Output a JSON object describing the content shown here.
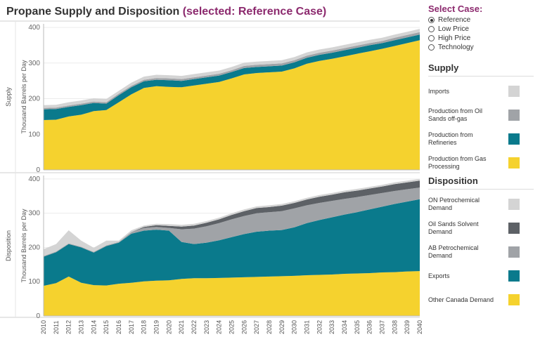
{
  "title": {
    "main": "Propane Supply and Disposition",
    "selected": "(selected: Reference Case)"
  },
  "case_selector": {
    "title": "Select Case:",
    "options": [
      {
        "label": "Reference",
        "selected": true
      },
      {
        "label": "Low Price",
        "selected": false
      },
      {
        "label": "High Price",
        "selected": false
      },
      {
        "label": "Technology",
        "selected": false
      }
    ]
  },
  "legend_supply": {
    "title": "Supply",
    "items": [
      {
        "label": "Imports",
        "color": "#d4d4d4"
      },
      {
        "label": "Production from Oil Sands off-gas",
        "color": "#a0a3a7"
      },
      {
        "label": "Production from Refineries",
        "color": "#0a7a8c"
      },
      {
        "label": "Production from Gas Processing",
        "color": "#f5d22e"
      }
    ]
  },
  "legend_disposition": {
    "title": "Disposition",
    "items": [
      {
        "label": "ON Petrochemical Demand",
        "color": "#d4d4d4"
      },
      {
        "label": "Oil Sands Solvent Demand",
        "color": "#5d6166"
      },
      {
        "label": "AB Petrochemical Demand",
        "color": "#a0a3a7"
      },
      {
        "label": "Exports",
        "color": "#0a7a8c"
      },
      {
        "label": "Other Canada Demand",
        "color": "#f5d22e"
      }
    ]
  },
  "chart_data": [
    {
      "type": "area",
      "panel_label": "Supply",
      "ylabel": "Thousand Barrels per Day",
      "ylim": [
        0,
        410
      ],
      "yticks": [
        0,
        100,
        200,
        300,
        400
      ],
      "stacked": true,
      "x": [
        2010,
        2011,
        2012,
        2013,
        2014,
        2015,
        2016,
        2017,
        2018,
        2019,
        2020,
        2021,
        2022,
        2023,
        2024,
        2025,
        2026,
        2027,
        2028,
        2029,
        2030,
        2031,
        2032,
        2033,
        2034,
        2035,
        2036,
        2037,
        2038,
        2039,
        2040
      ],
      "series": [
        {
          "name": "Production from Gas Processing",
          "color": "#f5d22e",
          "values": [
            140,
            141,
            150,
            155,
            165,
            168,
            190,
            212,
            230,
            235,
            233,
            232,
            237,
            242,
            247,
            257,
            268,
            272,
            274,
            276,
            285,
            298,
            306,
            312,
            319,
            326,
            333,
            340,
            348,
            356,
            364
          ]
        },
        {
          "name": "Production from Refineries",
          "color": "#0a7a8c",
          "values": [
            30,
            30,
            27,
            27,
            23,
            18,
            20,
            20,
            19,
            18,
            19,
            18,
            18,
            18,
            18,
            18,
            18,
            17,
            17,
            17,
            17,
            17,
            17,
            17,
            17,
            17,
            17,
            16,
            16,
            16,
            16
          ]
        },
        {
          "name": "Production from Oil Sands off-gas",
          "color": "#a0a3a7",
          "values": [
            4,
            4,
            4,
            4,
            4,
            4,
            4,
            4,
            4,
            5,
            5,
            5,
            5,
            5,
            5,
            5,
            6,
            6,
            6,
            6,
            6,
            6,
            6,
            6,
            6,
            6,
            6,
            6,
            7,
            7,
            7
          ]
        },
        {
          "name": "Imports",
          "color": "#d4d4d4",
          "values": [
            8,
            8,
            9,
            9,
            9,
            9,
            8,
            9,
            9,
            9,
            9,
            9,
            9,
            9,
            9,
            9,
            9,
            9,
            9,
            9,
            9,
            9,
            9,
            9,
            9,
            9,
            9,
            9,
            9,
            9,
            9
          ]
        }
      ]
    },
    {
      "type": "area",
      "panel_label": "Disposition",
      "ylabel": "Thousand Barrels per Day",
      "ylim": [
        0,
        410
      ],
      "yticks": [
        0,
        100,
        200,
        300,
        400
      ],
      "stacked": true,
      "x": [
        2010,
        2011,
        2012,
        2013,
        2014,
        2015,
        2016,
        2017,
        2018,
        2019,
        2020,
        2021,
        2022,
        2023,
        2024,
        2025,
        2026,
        2027,
        2028,
        2029,
        2030,
        2031,
        2032,
        2033,
        2034,
        2035,
        2036,
        2037,
        2038,
        2039,
        2040
      ],
      "series": [
        {
          "name": "Other Canada Demand",
          "color": "#f5d22e",
          "values": [
            88,
            96,
            115,
            97,
            90,
            89,
            94,
            97,
            101,
            103,
            104,
            108,
            110,
            110,
            111,
            112,
            113,
            114,
            115,
            116,
            117,
            119,
            120,
            121,
            123,
            124,
            125,
            127,
            128,
            130,
            131
          ]
        },
        {
          "name": "Exports",
          "color": "#0a7a8c",
          "values": [
            85,
            90,
            95,
            103,
            95,
            115,
            120,
            143,
            148,
            149,
            145,
            108,
            100,
            104,
            110,
            118,
            126,
            132,
            134,
            135,
            142,
            152,
            160,
            167,
            173,
            179,
            186,
            192,
            199,
            204,
            210
          ]
        },
        {
          "name": "AB Petrochemical Demand",
          "color": "#a0a3a7",
          "values": [
            2,
            2,
            2,
            2,
            2,
            2,
            2,
            5,
            8,
            8,
            8,
            37,
            45,
            48,
            50,
            52,
            53,
            54,
            54,
            55,
            55,
            52,
            50,
            48,
            46,
            44,
            42,
            40,
            38,
            36,
            34
          ]
        },
        {
          "name": "Oil Sands Solvent Demand",
          "color": "#5d6166",
          "values": [
            0,
            0,
            0,
            0,
            0,
            0,
            0,
            0,
            3,
            5,
            6,
            8,
            9,
            10,
            11,
            13,
            14,
            15,
            15,
            16,
            16,
            17,
            18,
            18,
            19,
            19,
            19,
            19,
            20,
            20,
            20
          ]
        },
        {
          "name": "ON Petrochemical Demand",
          "color": "#d4d4d4",
          "values": [
            20,
            22,
            38,
            18,
            12,
            14,
            4,
            5,
            4,
            4,
            5,
            5,
            5,
            5,
            5,
            5,
            5,
            5,
            5,
            5,
            5,
            5,
            5,
            5,
            5,
            5,
            5,
            5,
            5,
            5,
            5
          ]
        }
      ]
    }
  ]
}
